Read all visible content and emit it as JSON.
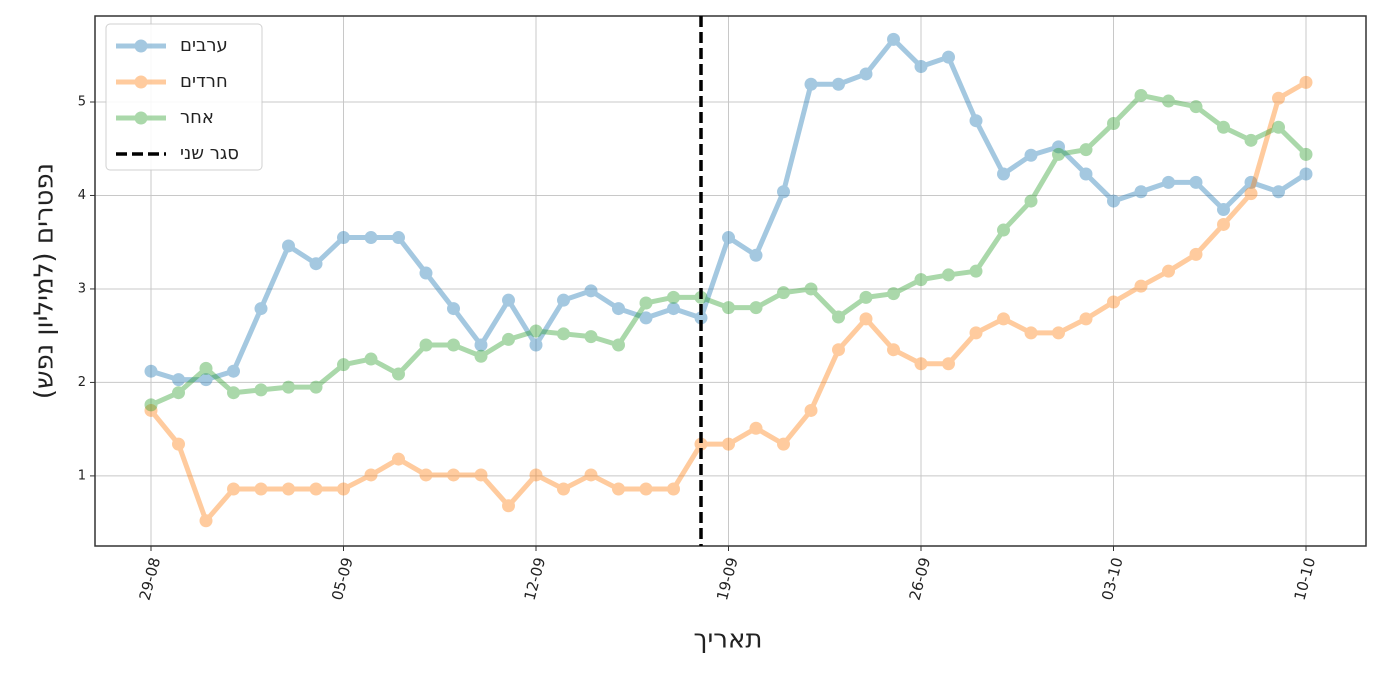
{
  "chart_data": {
    "type": "line",
    "xlabel": "תאריך",
    "ylabel": "נפטרים (למיליון נפש)",
    "categories": [
      "29-08",
      null,
      null,
      null,
      null,
      null,
      null,
      "05-09",
      null,
      null,
      null,
      null,
      null,
      null,
      "12-09",
      null,
      null,
      null,
      null,
      null,
      null,
      "19-09",
      null,
      null,
      null,
      null,
      null,
      null,
      "26-09",
      null,
      null,
      null,
      null,
      null,
      null,
      "03-10",
      null,
      null,
      null,
      null,
      null,
      null,
      "10-10"
    ],
    "series": [
      {
        "name": "ערבים",
        "color": "#1f77b4",
        "values": [
          2.12,
          2.03,
          2.03,
          2.12,
          2.79,
          3.46,
          3.27,
          3.55,
          3.55,
          3.55,
          3.17,
          2.79,
          2.4,
          2.88,
          2.4,
          2.88,
          2.98,
          2.79,
          2.69,
          2.79,
          2.69,
          3.55,
          3.36,
          4.04,
          5.19,
          5.19,
          5.3,
          5.67,
          5.38,
          5.48,
          4.8,
          4.23,
          4.43,
          4.52,
          4.23,
          3.94,
          4.04,
          4.14,
          4.14,
          3.85,
          4.14,
          4.04,
          4.23
        ]
      },
      {
        "name": "חרדים",
        "color": "#ff7f0e",
        "values": [
          1.7,
          1.34,
          0.52,
          0.86,
          0.86,
          0.86,
          0.86,
          0.86,
          1.01,
          1.18,
          1.01,
          1.01,
          1.01,
          0.68,
          1.01,
          0.86,
          1.01,
          0.86,
          0.86,
          0.86,
          1.34,
          1.34,
          1.51,
          1.34,
          1.7,
          2.35,
          2.68,
          2.35,
          2.2,
          2.2,
          2.53,
          2.68,
          2.53,
          2.53,
          2.68,
          2.86,
          3.03,
          3.19,
          3.37,
          3.69,
          4.02,
          5.04,
          5.21
        ]
      },
      {
        "name": "אחר",
        "color": "#2ca02c",
        "values": [
          1.76,
          1.89,
          2.15,
          1.89,
          1.92,
          1.95,
          1.95,
          2.19,
          2.25,
          2.09,
          2.4,
          2.4,
          2.28,
          2.46,
          2.55,
          2.52,
          2.49,
          2.4,
          2.85,
          2.91,
          2.91,
          2.8,
          2.8,
          2.96,
          3.0,
          2.7,
          2.91,
          2.95,
          3.1,
          3.15,
          3.19,
          3.63,
          3.94,
          4.44,
          4.49,
          4.77,
          5.07,
          5.01,
          4.95,
          4.73,
          4.59,
          4.73,
          4.44
        ]
      }
    ],
    "vline": {
      "label": "סגר שני",
      "index": 20,
      "color": "#000000"
    },
    "ylim": [
      0.25,
      5.92
    ],
    "yticks": [
      1,
      2,
      3,
      4,
      5
    ],
    "grid": true,
    "legend": "upper-left"
  }
}
